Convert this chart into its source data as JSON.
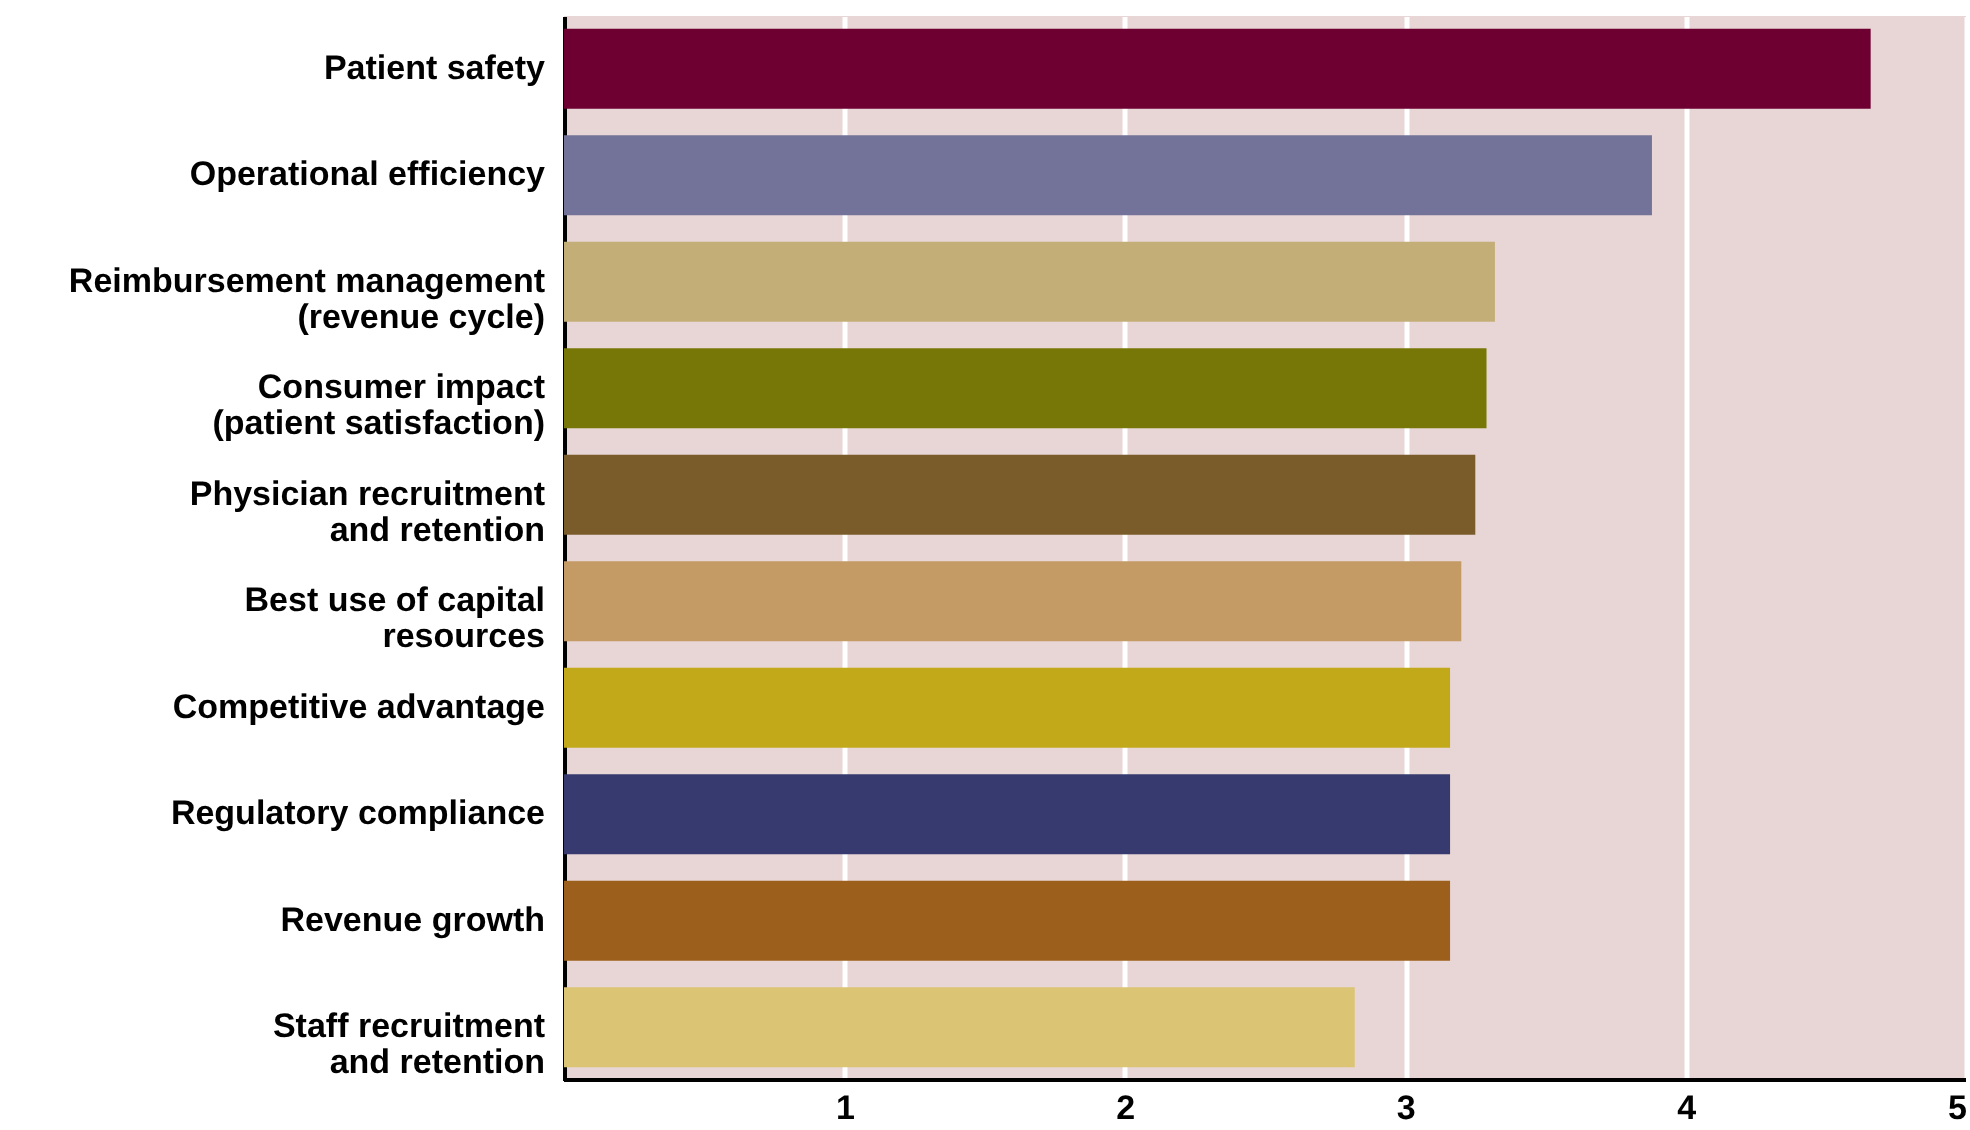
{
  "chart_data": {
    "type": "bar",
    "orientation": "horizontal",
    "categories": [
      "Patient safety",
      "Operational efficiency",
      "Reimbursement management\n(revenue cycle)",
      "Consumer impact\n(patient satisfaction)",
      "Physician recruitment\nand retention",
      "Best use of capital\nresources",
      "Competitive advantage",
      "Regulatory compliance",
      "Revenue growth",
      "Staff recruitment\nand retention"
    ],
    "values": [
      4.66,
      3.88,
      3.32,
      3.29,
      3.25,
      3.2,
      3.16,
      3.16,
      3.16,
      2.82
    ],
    "colors": [
      "#6d0030",
      "#737399",
      "#c4ae78",
      "#777707",
      "#7a5c2a",
      "#c49a65",
      "#c2a91a",
      "#363a6e",
      "#9c601c",
      "#dbc474"
    ],
    "xlim": [
      0,
      5
    ],
    "xticks": [
      1,
      2,
      3,
      4,
      5
    ],
    "grid": "x"
  }
}
